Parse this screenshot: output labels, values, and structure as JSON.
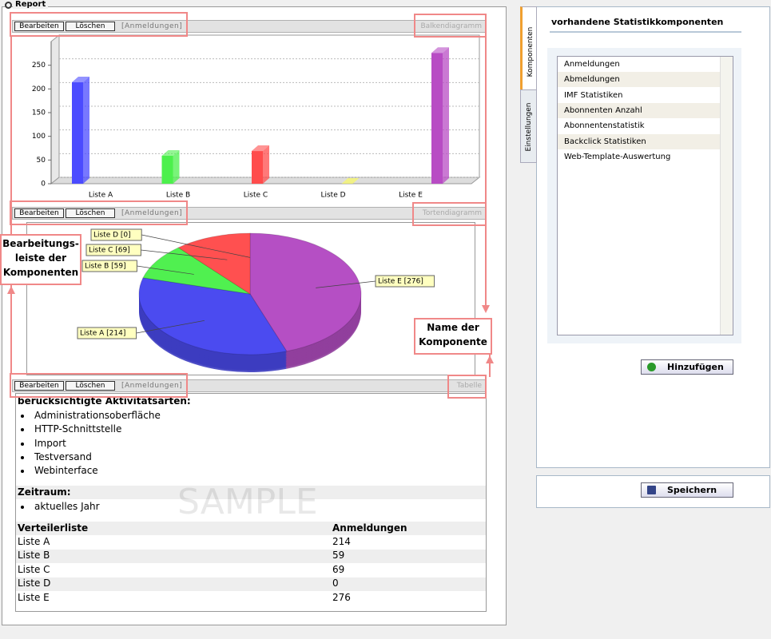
{
  "report": {
    "title": "Report",
    "watermark": "SAMPLE"
  },
  "components": [
    {
      "buttons": [
        "Bearbeiten",
        "Löschen",
        "[Anmeldungen]"
      ],
      "name": "Balkendiagramm"
    },
    {
      "buttons": [
        "Bearbeiten",
        "Löschen",
        "[Anmeldungen]"
      ],
      "name": "Tortendiagramm"
    },
    {
      "buttons": [
        "Bearbeiten",
        "Löschen",
        "[Anmeldungen]"
      ],
      "name": "Tabelle"
    }
  ],
  "chart_data": [
    {
      "type": "bar",
      "categories": [
        "Liste A",
        "Liste B",
        "Liste C",
        "Liste D",
        "Liste E"
      ],
      "values": [
        214,
        59,
        69,
        0,
        276
      ],
      "colors": [
        "#4b4bff",
        "#4cf04c",
        "#ff4c4c",
        "#ffff4c",
        "#b84cc4"
      ],
      "ylim": [
        0,
        300
      ],
      "yticks": [
        0,
        50,
        100,
        150,
        200,
        250
      ],
      "grid": true
    },
    {
      "type": "pie",
      "categories": [
        "Liste A",
        "Liste B",
        "Liste C",
        "Liste D",
        "Liste E"
      ],
      "values": [
        214,
        59,
        69,
        0,
        276
      ],
      "value_labels": [
        "Liste A [214]",
        "Liste B [59]",
        "Liste C [69]",
        "Liste D [0]",
        "Liste E [276]"
      ],
      "colors": [
        "#4b4bf0",
        "#50f050",
        "#ff5050",
        "#ffff50",
        "#b54fc4"
      ]
    }
  ],
  "table": {
    "activities_heading": "berücksichtigte Aktivitätsarten:",
    "activities": [
      "Administrationsoberfläche",
      "HTTP-Schnittstelle",
      "Import",
      "Testversand",
      "Webinterface"
    ],
    "period_heading": "Zeitraum:",
    "period": "aktuelles Jahr",
    "header": [
      "Verteilerliste",
      "Anmeldungen"
    ],
    "rows": [
      [
        "Liste A",
        214
      ],
      [
        "Liste B",
        59
      ],
      [
        "Liste C",
        69
      ],
      [
        "Liste D",
        0
      ],
      [
        "Liste E",
        276
      ]
    ]
  },
  "annotations": [
    {
      "lines": [
        "Bearbeitungs-",
        "leiste der",
        "Komponenten"
      ]
    },
    {
      "lines": [
        "Name der",
        "Komponente"
      ]
    }
  ],
  "sidebar": {
    "tabs": [
      "Komponenten",
      "Einstellungen"
    ],
    "heading": "vorhandene Statistikkomponenten",
    "items": [
      "Anmeldungen",
      "Abmeldungen",
      "IMF Statistiken",
      "Abonnenten Anzahl",
      "Abonnentenstatistik",
      "Backclick Statistiken",
      "Web-Template-Auswertung"
    ],
    "add_button": "Hinzufügen",
    "save_button": "Speichern"
  }
}
